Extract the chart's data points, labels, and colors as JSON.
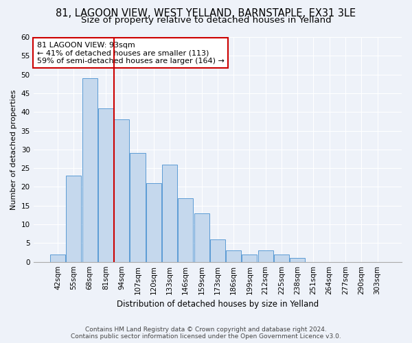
{
  "title": "81, LAGOON VIEW, WEST YELLAND, BARNSTAPLE, EX31 3LE",
  "subtitle": "Size of property relative to detached houses in Yelland",
  "xlabel": "Distribution of detached houses by size in Yelland",
  "ylabel": "Number of detached properties",
  "bar_color": "#c5d8ed",
  "bar_edge_color": "#5b9bd5",
  "categories": [
    "42sqm",
    "55sqm",
    "68sqm",
    "81sqm",
    "94sqm",
    "107sqm",
    "120sqm",
    "133sqm",
    "146sqm",
    "159sqm",
    "173sqm",
    "186sqm",
    "199sqm",
    "212sqm",
    "225sqm",
    "238sqm",
    "251sqm",
    "264sqm",
    "277sqm",
    "290sqm",
    "303sqm"
  ],
  "bar_values": [
    2,
    23,
    49,
    41,
    38,
    29,
    21,
    26,
    17,
    13,
    6,
    3,
    2,
    3,
    2,
    1,
    0,
    0,
    0,
    0,
    0
  ],
  "ylim": [
    0,
    60
  ],
  "yticks": [
    0,
    5,
    10,
    15,
    20,
    25,
    30,
    35,
    40,
    45,
    50,
    55,
    60
  ],
  "vline_x_index": 3.5,
  "vline_color": "#cc0000",
  "annotation_text": "81 LAGOON VIEW: 93sqm\n← 41% of detached houses are smaller (113)\n59% of semi-detached houses are larger (164) →",
  "annotation_box_color": "#cc0000",
  "footer": "Contains HM Land Registry data © Crown copyright and database right 2024.\nContains public sector information licensed under the Open Government Licence v3.0.",
  "background_color": "#eef2f9",
  "grid_color": "#ffffff",
  "title_fontsize": 10.5,
  "subtitle_fontsize": 9.5,
  "xlabel_fontsize": 8.5,
  "ylabel_fontsize": 8,
  "tick_fontsize": 7.5,
  "annotation_fontsize": 8,
  "footer_fontsize": 6.5
}
